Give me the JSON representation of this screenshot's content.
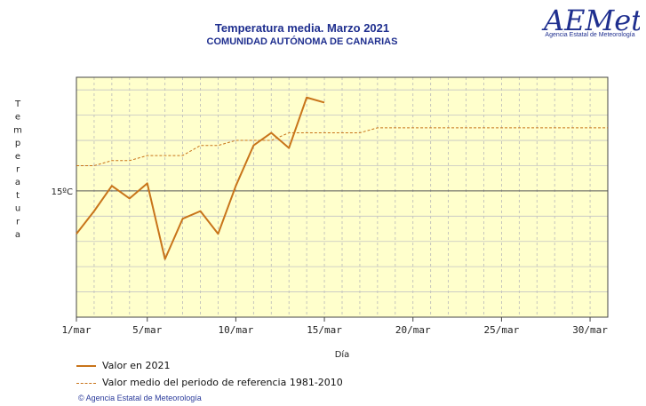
{
  "header": {
    "title": "Temperatura media. Marzo 2021",
    "subtitle": "COMUNIDAD AUTÓNOMA DE CANARIAS"
  },
  "logo": {
    "text": "AEMet",
    "caption": "Agencia Estatal de Meteorología"
  },
  "legend": {
    "series1": "Valor en 2021",
    "series2": "Valor medio del periodo de referencia 1981-2010"
  },
  "credit": "© Agencia Estatal de Meteorología",
  "colors": {
    "series": "#c8741a",
    "plot_bg": "#ffffcc",
    "title": "#1f2f8f"
  },
  "chart_data": {
    "type": "line",
    "title": "Temperatura media. Marzo 2021",
    "subtitle": "COMUNIDAD AUTÓNOMA DE CANARIAS",
    "xlabel": "Día",
    "ylabel": "Temperatura",
    "xlim": [
      1,
      31
    ],
    "ylim": [
      10.0,
      19.5
    ],
    "x_ticks": [
      1,
      5,
      10,
      15,
      20,
      25,
      30
    ],
    "x_tick_labels": [
      "1/mar",
      "5/mar",
      "10/mar",
      "15/mar",
      "20/mar",
      "25/mar",
      "30/mar"
    ],
    "y_ticks": [
      15
    ],
    "y_tick_labels": [
      "15ºC"
    ],
    "grid": true,
    "legend_position": "bottom-left",
    "series": [
      {
        "name": "Valor en 2021",
        "style": "solid",
        "x": [
          1,
          2,
          3,
          4,
          5,
          6,
          7,
          8,
          9,
          10,
          11,
          12,
          13,
          14,
          15
        ],
        "values": [
          13.3,
          14.2,
          15.2,
          14.7,
          15.3,
          12.3,
          13.9,
          14.2,
          13.3,
          15.2,
          16.8,
          17.3,
          16.7,
          18.7,
          18.5
        ]
      },
      {
        "name": "Valor medio del periodo de referencia 1981-2010",
        "style": "dashed",
        "x": [
          1,
          2,
          3,
          4,
          5,
          6,
          7,
          8,
          9,
          10,
          11,
          12,
          13,
          14,
          15,
          16,
          17,
          18,
          19,
          20,
          21,
          22,
          23,
          24,
          25,
          26,
          27,
          28,
          29,
          30,
          31
        ],
        "values": [
          16.0,
          16.0,
          16.2,
          16.2,
          16.4,
          16.4,
          16.4,
          16.8,
          16.8,
          17.0,
          17.0,
          17.0,
          17.3,
          17.3,
          17.3,
          17.3,
          17.3,
          17.5,
          17.5,
          17.5,
          17.5,
          17.5,
          17.5,
          17.5,
          17.5,
          17.5,
          17.5,
          17.5,
          17.5,
          17.5,
          17.5
        ]
      }
    ]
  }
}
